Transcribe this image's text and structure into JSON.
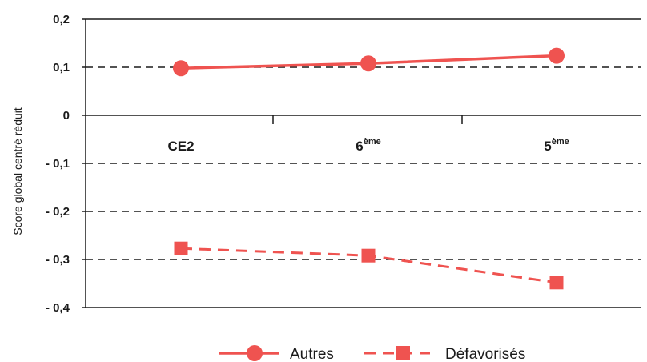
{
  "chart_data": {
    "type": "line",
    "ylabel": "Score global centré réduit",
    "ylim": [
      -0.4,
      0.2
    ],
    "yticks": [
      {
        "value": 0.2,
        "label": "0,2"
      },
      {
        "value": 0.1,
        "label": "0,1"
      },
      {
        "value": 0,
        "label": "0"
      },
      {
        "value": -0.1,
        "label": "- 0,1"
      },
      {
        "value": -0.2,
        "label": "- 0,2"
      },
      {
        "value": -0.3,
        "label": "- 0,3"
      },
      {
        "value": -0.4,
        "label": "- 0,4"
      }
    ],
    "dashed_gridlines": [
      0.1,
      -0.1,
      -0.2,
      -0.3
    ],
    "categories": [
      {
        "base": "CE2",
        "sup": ""
      },
      {
        "base": "6",
        "sup": "ème"
      },
      {
        "base": "5",
        "sup": "ème"
      }
    ],
    "series": [
      {
        "name": "Autres",
        "values": [
          0.098,
          0.108,
          0.124
        ],
        "color": "#ef5350",
        "line": "solid",
        "marker": "circle"
      },
      {
        "name": "Défavorisés",
        "values": [
          -0.277,
          -0.292,
          -0.348
        ],
        "color": "#ef5350",
        "line": "dashed",
        "marker": "square"
      }
    ],
    "legend": "bottom-center"
  }
}
